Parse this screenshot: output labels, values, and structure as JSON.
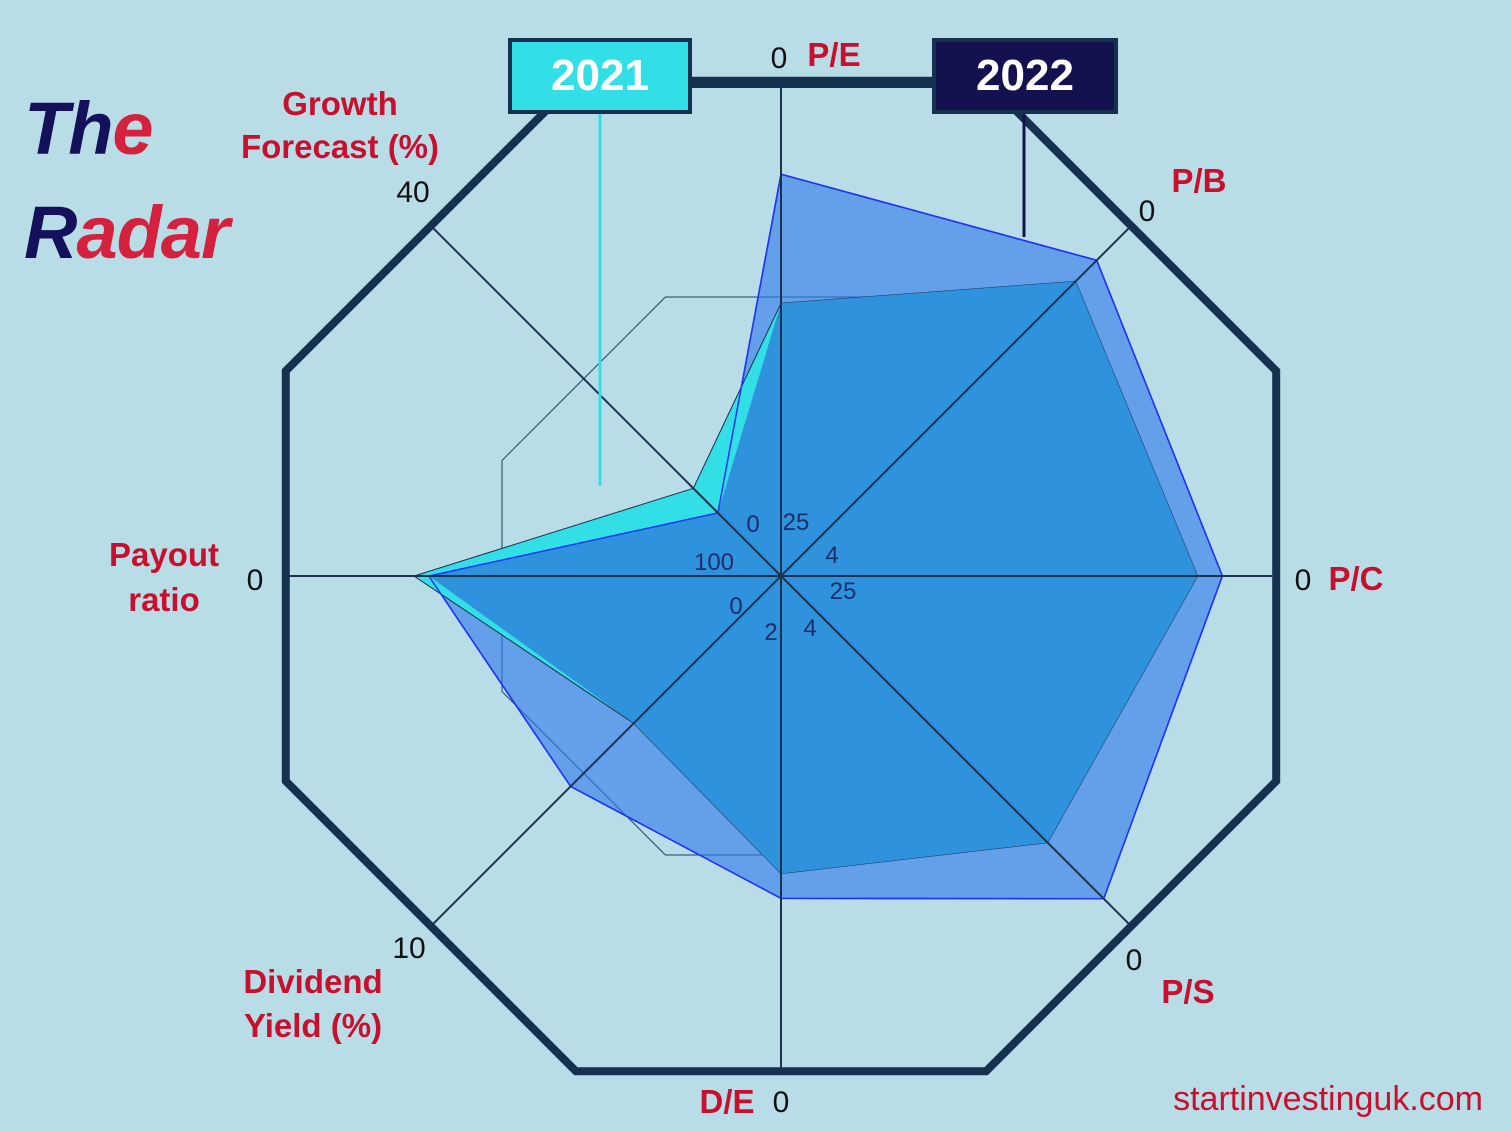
{
  "title": {
    "line1_first": "Th",
    "line1_rest": "e",
    "line2_first": "R",
    "line2_rest": "adar"
  },
  "legend": [
    {
      "label": "2021",
      "color": "#33dfe6",
      "text_color": "#ffffff"
    },
    {
      "label": "2022",
      "color": "#14114f",
      "text_color": "#ffffff"
    }
  ],
  "footer": "startinvestinguk.com",
  "colors": {
    "background": "#b9dde7",
    "frame": "#16304f",
    "axis_label": "#c8102e",
    "series_2021": "#33dfe6",
    "series_2022_fill": "#2f7bea",
    "series_2022_stroke": "#1f33ff",
    "overlap": "#2e93dc"
  },
  "chart_data": {
    "type": "radar",
    "axes": [
      {
        "label": "P/E",
        "outer_tick": "0",
        "inner_tick": "25"
      },
      {
        "label": "P/B",
        "outer_tick": "0",
        "inner_tick": "4"
      },
      {
        "label": "P/C",
        "outer_tick": "0",
        "inner_tick": "25"
      },
      {
        "label": "P/S",
        "outer_tick": "0",
        "inner_tick": "4"
      },
      {
        "label": "D/E",
        "outer_tick": "0",
        "inner_tick": "2"
      },
      {
        "label": "Dividend Yield (%)",
        "outer_tick": "10",
        "inner_tick": "0"
      },
      {
        "label": "Payout ratio",
        "outer_tick": "0",
        "inner_tick": "100"
      },
      {
        "label": "Growth Forecast (%)",
        "outer_tick": "40",
        "inner_tick": "0"
      }
    ],
    "normalized_scale": [
      0,
      1
    ],
    "series": [
      {
        "name": "2021",
        "values": [
          0.55,
          0.84,
          0.84,
          0.76,
          0.6,
          0.42,
          0.74,
          0.25
        ]
      },
      {
        "name": "2022",
        "values": [
          0.81,
          0.9,
          0.89,
          0.92,
          0.65,
          0.6,
          0.71,
          0.18
        ]
      }
    ]
  }
}
